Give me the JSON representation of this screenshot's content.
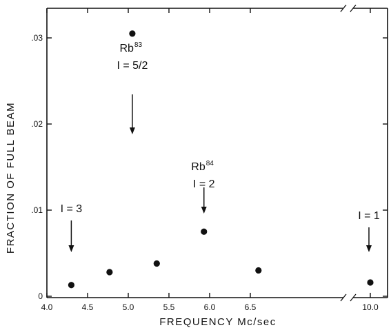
{
  "chart_data": {
    "type": "scatter",
    "title": "",
    "xlabel": "FREQUENCY Mc/sec",
    "ylabel": "FRACTION OF FULL BEAM",
    "xlim": [
      4.0,
      10.0
    ],
    "ylim": [
      0,
      0.034
    ],
    "x_axis_break": "between 6.9 and 10.0",
    "x_ticks": [
      {
        "value": 4.0,
        "label": "4.0"
      },
      {
        "value": 4.5,
        "label": "4.5"
      },
      {
        "value": 5.0,
        "label": "5.0"
      },
      {
        "value": 5.5,
        "label": "5.5"
      },
      {
        "value": 6.0,
        "label": "6.0"
      },
      {
        "value": 6.5,
        "label": "6.5"
      },
      {
        "value": 10.0,
        "label": "10.0"
      }
    ],
    "y_ticks": [
      {
        "value": 0,
        "label": "0"
      },
      {
        "value": 0.01,
        "label": ".01"
      },
      {
        "value": 0.02,
        "label": ".02"
      },
      {
        "value": 0.03,
        "label": ".03"
      }
    ],
    "points": [
      {
        "x": 4.3,
        "y": 0.0013
      },
      {
        "x": 4.77,
        "y": 0.0028
      },
      {
        "x": 5.05,
        "y": 0.0305
      },
      {
        "x": 5.35,
        "y": 0.0038
      },
      {
        "x": 5.93,
        "y": 0.0075
      },
      {
        "x": 6.6,
        "y": 0.003
      },
      {
        "x": 10.0,
        "y": 0.0016
      }
    ],
    "annotations": [
      {
        "lines": [
          {
            "text": "Rb",
            "sup": "83"
          },
          {
            "text": "I = 5/2"
          }
        ],
        "x": 5.05
      },
      {
        "lines": [
          {
            "text": "Rb",
            "sup": "84"
          },
          {
            "text": "I = 2"
          }
        ],
        "x": 5.93
      },
      {
        "lines": [
          {
            "text": "I = 3"
          }
        ],
        "x": 4.3
      },
      {
        "lines": [
          {
            "text": "I = 1"
          }
        ],
        "x": 10.0
      }
    ],
    "grid": false,
    "legend": "none"
  }
}
